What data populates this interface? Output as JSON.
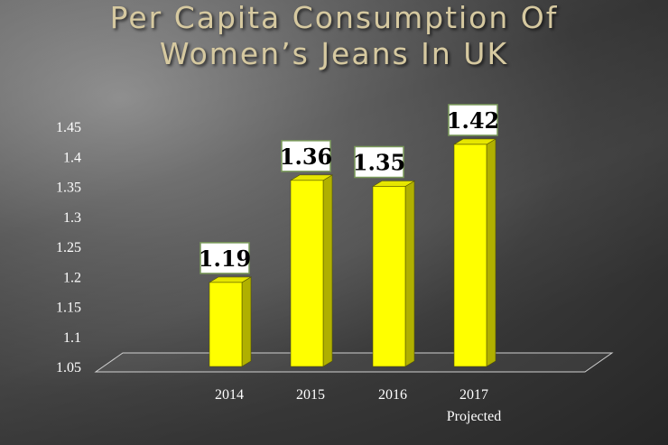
{
  "title_line1": "Per Capita Consumption Of",
  "title_line2": "Women’s  Jeans In UK",
  "chart_data": {
    "type": "bar",
    "title": "Per Capita Consumption Of Women’s Jeans In UK",
    "categories": [
      "2014",
      "2015",
      "2016",
      "2017"
    ],
    "category_sublabels": [
      "",
      "",
      "",
      "Projected"
    ],
    "values": [
      1.19,
      1.36,
      1.35,
      1.42
    ],
    "data_labels": [
      "1.19",
      "1.36",
      "1.35",
      "1.42"
    ],
    "y_ticks": [
      "1.05",
      "1.1",
      "1.15",
      "1.2",
      "1.25",
      "1.3",
      "1.35",
      "1.4",
      "1.45"
    ],
    "ylim": [
      1.05,
      1.45
    ],
    "xlabel": "",
    "ylabel": "",
    "grid": false,
    "legend": "none",
    "bar_color": "#ffff00",
    "bar_side_color": "#b0b000",
    "label_box_border": "#7a9a5a"
  }
}
